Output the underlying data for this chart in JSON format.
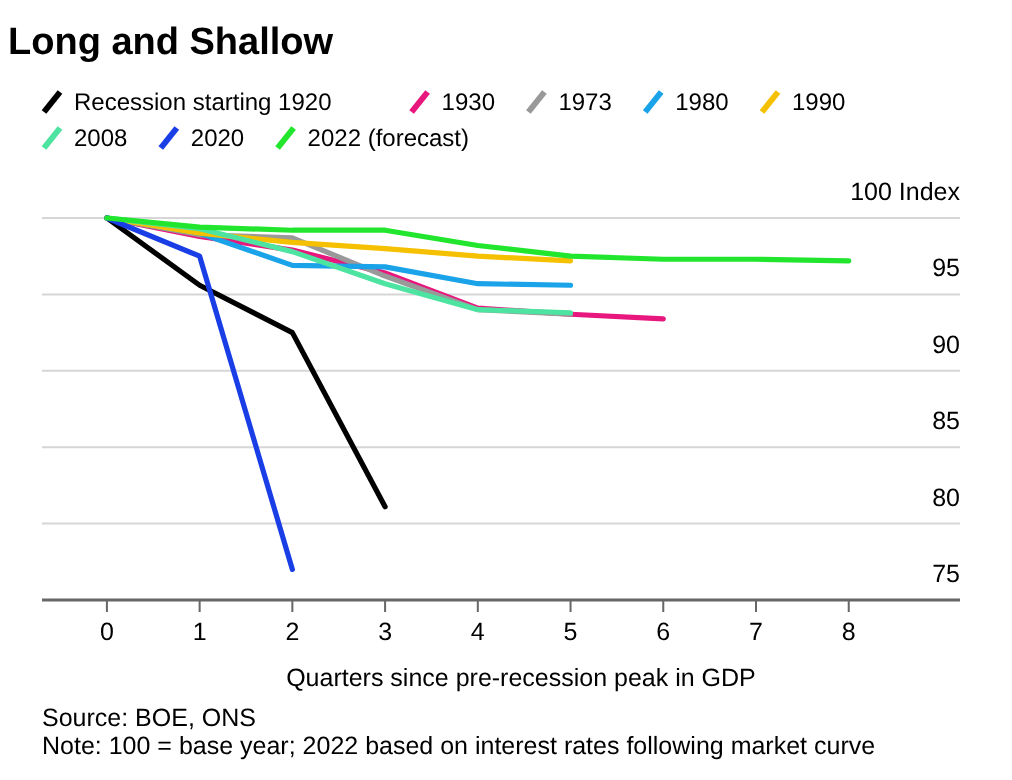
{
  "chart_data": {
    "type": "line",
    "title": "Long and Shallow",
    "xlabel": "Quarters since pre-recession peak in GDP",
    "x": [
      0,
      1,
      2,
      3,
      4,
      5,
      6,
      7,
      8
    ],
    "series": [
      {
        "name": "Recession starting 1920",
        "color": "#000000",
        "values": [
          100,
          95.6,
          92.5,
          81.1,
          null,
          null,
          null,
          null,
          null
        ]
      },
      {
        "name": "1930",
        "color": "#e8177d",
        "values": [
          100,
          98.8,
          97.9,
          96.4,
          94.1,
          93.7,
          93.4,
          null,
          null
        ]
      },
      {
        "name": "1973",
        "color": "#999999",
        "values": [
          100,
          98.9,
          98.7,
          96.2,
          94.0,
          93.7,
          null,
          null,
          null
        ]
      },
      {
        "name": "1980",
        "color": "#1aa3e8",
        "values": [
          100,
          99.0,
          96.9,
          96.8,
          95.7,
          95.6,
          null,
          null,
          null
        ]
      },
      {
        "name": "1990",
        "color": "#f5c000",
        "values": [
          100,
          99.0,
          98.4,
          98.0,
          97.5,
          97.2,
          null,
          null,
          null
        ]
      },
      {
        "name": "2008",
        "color": "#4de3a0",
        "values": [
          100,
          99.3,
          97.8,
          95.7,
          94.0,
          93.8,
          null,
          null,
          null
        ]
      },
      {
        "name": "2020",
        "color": "#1a3ee6",
        "values": [
          100,
          97.5,
          77.0,
          null,
          null,
          null,
          null,
          null,
          null
        ]
      },
      {
        "name": "2022 (forecast)",
        "color": "#22e62e",
        "values": [
          100,
          99.4,
          99.2,
          99.2,
          98.2,
          97.5,
          97.3,
          97.3,
          97.2
        ]
      }
    ],
    "xlim": [
      -0.7,
      9.2
    ],
    "xticks": [
      0,
      1,
      2,
      3,
      4,
      5,
      6,
      7,
      8
    ],
    "ylim": [
      75,
      100
    ],
    "yticks": [
      {
        "value": 100,
        "label": "100 Index"
      },
      95,
      90,
      85,
      {
        "value": 80,
        "label": "80"
      },
      75
    ],
    "grid": "y",
    "legend": "top",
    "line_style": "solid",
    "marker": "none",
    "annotations": [
      "Source: BOE, ONS",
      "Note: 100 = base year; 2022 based on interest rates following market curve"
    ]
  }
}
